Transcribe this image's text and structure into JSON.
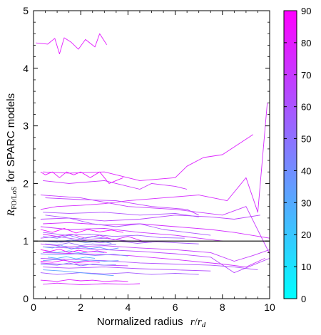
{
  "chart_data": {
    "type": "line",
    "xlabel": {
      "text": "Normalized radius",
      "math_var": "r",
      "math_slash": "/",
      "math_var2": "r",
      "math_sub": "d"
    },
    "ylabel": {
      "symbol": "R",
      "subscript": "FO/LoS",
      "suffix": "for SPARC models"
    },
    "xlim": [
      0,
      10
    ],
    "ylim": [
      0,
      5
    ],
    "x_ticks": [
      "0",
      "2",
      "4",
      "6",
      "8",
      "10"
    ],
    "y_ticks": [
      "0",
      "1",
      "2",
      "3",
      "4",
      "5"
    ],
    "reference_line": {
      "y": 1,
      "color": "#000000"
    },
    "colorbar": {
      "range": [
        0,
        90
      ],
      "ticks": [
        "0",
        "10",
        "20",
        "30",
        "40",
        "50",
        "60",
        "70",
        "80",
        "90"
      ],
      "colormap": [
        "#00ffff",
        "#ff00ff"
      ]
    },
    "series": [
      {
        "c": 80,
        "x": [
          0.1,
          0.6,
          0.9,
          1.1,
          1.3,
          1.6,
          1.9,
          2.2,
          2.6,
          2.8,
          3.1
        ],
        "y": [
          4.44,
          4.42,
          4.52,
          4.25,
          4.53,
          4.45,
          4.33,
          4.5,
          4.37,
          4.6,
          4.41
        ]
      },
      {
        "c": 75,
        "x": [
          0.3,
          1.0,
          2.0,
          3.0,
          4.0,
          5.5,
          7.0,
          8.2,
          9.0,
          9.5,
          9.9
        ],
        "y": [
          1.55,
          1.6,
          1.62,
          1.65,
          1.7,
          1.75,
          1.8,
          1.7,
          2.1,
          1.5,
          3.4
        ]
      },
      {
        "c": 78,
        "x": [
          0.4,
          1.5,
          3.0,
          4.5,
          6.0,
          6.5,
          7.2,
          8.0,
          9.3
        ],
        "y": [
          2.2,
          2.18,
          2.2,
          2.05,
          2.1,
          2.3,
          2.45,
          2.5,
          2.85
        ]
      },
      {
        "c": 82,
        "x": [
          0.3,
          0.5,
          0.8,
          1.1,
          1.4,
          1.7,
          2.0,
          2.4,
          2.8,
          3.2,
          3.8
        ],
        "y": [
          2.2,
          2.15,
          2.2,
          2.1,
          2.2,
          2.15,
          2.2,
          2.1,
          2.2,
          2.0,
          2.1
        ]
      },
      {
        "c": 72,
        "x": [
          0.4,
          1.5,
          3.0,
          4.5,
          5.0,
          6.0,
          6.5
        ],
        "y": [
          2.05,
          2.0,
          2.05,
          1.9,
          2.0,
          1.95,
          1.9
        ]
      },
      {
        "c": 70,
        "x": [
          0.3,
          2.0,
          4.0,
          6.0,
          8.0,
          9.0,
          10.0
        ],
        "y": [
          1.8,
          1.75,
          1.6,
          1.55,
          1.45,
          1.6,
          0.78
        ]
      },
      {
        "c": 68,
        "x": [
          0.5,
          2.0,
          3.5,
          5.0,
          6.5,
          7.0
        ],
        "y": [
          1.75,
          1.72,
          1.7,
          1.6,
          1.55,
          1.45
        ]
      },
      {
        "c": 66,
        "x": [
          0.3,
          1.5,
          3.0,
          4.5,
          6.0,
          7.5,
          8.5,
          9.6
        ],
        "y": [
          1.38,
          1.4,
          1.35,
          1.38,
          1.45,
          1.42,
          1.38,
          1.45
        ]
      },
      {
        "c": 74,
        "x": [
          0.4,
          1.5,
          3.0,
          4.5,
          6.0,
          7.5,
          8.5,
          10.0
        ],
        "y": [
          1.3,
          1.32,
          1.28,
          1.3,
          1.25,
          1.2,
          1.15,
          1.05
        ]
      },
      {
        "c": 71,
        "x": [
          0.3,
          1.5,
          3.0,
          4.5,
          6.0,
          7.0,
          8.0
        ],
        "y": [
          1.25,
          1.2,
          1.22,
          1.15,
          1.1,
          1.05,
          1.0
        ]
      },
      {
        "c": 60,
        "x": [
          0.5,
          1.5,
          2.5,
          3.5,
          4.5,
          5.5,
          6.5,
          7.5
        ],
        "y": [
          1.45,
          1.4,
          1.3,
          1.25,
          1.3,
          1.2,
          1.15,
          1.1
        ]
      },
      {
        "c": 77,
        "x": [
          0.4,
          1.0,
          1.6,
          2.2,
          2.8,
          3.4,
          4.0,
          4.6
        ],
        "y": [
          1.12,
          1.08,
          1.12,
          1.05,
          1.1,
          1.02,
          1.08,
          1.0
        ]
      },
      {
        "c": 64,
        "x": [
          0.3,
          1.0,
          2.0,
          3.0,
          4.0,
          5.0
        ],
        "y": [
          1.05,
          1.08,
          1.02,
          1.05,
          1.0,
          0.98
        ]
      },
      {
        "c": 58,
        "x": [
          0.4,
          1.2,
          2.0,
          2.8,
          3.6,
          4.4,
          5.2,
          6.0,
          7.0
        ],
        "y": [
          1.0,
          0.98,
          1.02,
          0.97,
          1.0,
          0.96,
          0.99,
          0.97,
          0.95
        ]
      },
      {
        "c": 69,
        "x": [
          0.3,
          1.5,
          3.0,
          4.5,
          6.0,
          7.5,
          8.5,
          9.3,
          10.0
        ],
        "y": [
          0.95,
          0.9,
          0.92,
          0.88,
          0.85,
          0.8,
          0.65,
          0.75,
          0.85
        ]
      },
      {
        "c": 65,
        "x": [
          0.4,
          1.5,
          3.0,
          4.5,
          6.0,
          7.5,
          8.5,
          10.0
        ],
        "y": [
          0.9,
          0.88,
          0.85,
          0.82,
          0.78,
          0.72,
          0.45,
          0.7
        ]
      },
      {
        "c": 73,
        "x": [
          0.4,
          2.0,
          4.0,
          6.0,
          8.0,
          9.0,
          9.8
        ],
        "y": [
          0.8,
          0.78,
          0.75,
          0.68,
          0.6,
          0.55,
          0.7
        ]
      },
      {
        "c": 62,
        "x": [
          0.3,
          1.5,
          3.0,
          4.5,
          6.0,
          7.5,
          8.5,
          9.5
        ],
        "y": [
          0.7,
          0.68,
          0.66,
          0.62,
          0.6,
          0.58,
          0.55,
          0.5
        ]
      },
      {
        "c": 67,
        "x": [
          0.3,
          1.0,
          2.0,
          3.0,
          4.0
        ],
        "y": [
          0.62,
          0.6,
          0.6,
          0.58,
          0.57
        ]
      },
      {
        "c": 63,
        "x": [
          0.4,
          1.5,
          3.0,
          4.5,
          6.0,
          7.5
        ],
        "y": [
          0.55,
          0.53,
          0.55,
          0.52,
          0.5,
          0.48
        ]
      },
      {
        "c": 58,
        "x": [
          0.3,
          1.0,
          2.0,
          3.0,
          4.0,
          5.0,
          6.0,
          7.0
        ],
        "y": [
          0.45,
          0.42,
          0.45,
          0.43,
          0.45,
          0.42,
          0.44,
          0.42
        ]
      },
      {
        "c": 79,
        "x": [
          0.3,
          1.0,
          1.5,
          2.0,
          2.5,
          3.0,
          3.5,
          4.0
        ],
        "y": [
          0.32,
          0.3,
          0.33,
          0.31,
          0.32,
          0.3,
          0.31,
          0.3
        ]
      },
      {
        "c": 76,
        "x": [
          0.4,
          1.0,
          2.0,
          3.0,
          4.0,
          4.5
        ],
        "y": [
          0.25,
          0.27,
          0.24,
          0.26,
          0.25,
          0.26
        ]
      },
      {
        "c": 40,
        "x": [
          0.4,
          1.0,
          1.6,
          2.2,
          2.8,
          3.3
        ],
        "y": [
          1.0,
          0.98,
          1.02,
          0.97,
          1.0,
          0.96
        ]
      },
      {
        "c": 35,
        "x": [
          0.4,
          0.8,
          1.2,
          1.6,
          2.0,
          2.4,
          2.8,
          3.2,
          3.6
        ],
        "y": [
          0.9,
          0.88,
          0.92,
          0.86,
          0.9,
          0.87,
          0.89,
          0.85,
          0.88
        ]
      },
      {
        "c": 30,
        "x": [
          0.5,
          1.0,
          1.5,
          2.0,
          2.5,
          3.0
        ],
        "y": [
          0.82,
          0.8,
          0.83,
          0.79,
          0.82,
          0.8
        ]
      },
      {
        "c": 42,
        "x": [
          0.3,
          1.0,
          1.8,
          2.6,
          3.4,
          4.0
        ],
        "y": [
          0.78,
          0.76,
          0.78,
          0.75,
          0.77,
          0.74
        ]
      },
      {
        "c": 28,
        "x": [
          0.6,
          1.0,
          1.4,
          1.8,
          2.2,
          2.6
        ],
        "y": [
          0.72,
          0.7,
          0.73,
          0.69,
          0.72,
          0.7
        ]
      },
      {
        "c": 38,
        "x": [
          0.4,
          1.0,
          1.7,
          2.4,
          3.0,
          3.6
        ],
        "y": [
          0.66,
          0.68,
          0.64,
          0.67,
          0.65,
          0.66
        ]
      },
      {
        "c": 45,
        "x": [
          0.3,
          1.0,
          1.5,
          2.0,
          2.5,
          3.0,
          3.5
        ],
        "y": [
          0.6,
          0.58,
          0.62,
          0.57,
          0.6,
          0.58,
          0.59
        ]
      },
      {
        "c": 33,
        "x": [
          0.4,
          1.2,
          2.0,
          2.8,
          3.4
        ],
        "y": [
          0.5,
          0.48,
          0.45,
          0.42,
          0.4
        ]
      },
      {
        "c": 48,
        "x": [
          0.4,
          1.0,
          1.5,
          2.0,
          2.5,
          3.0
        ],
        "y": [
          1.08,
          1.05,
          1.1,
          1.04,
          1.08,
          1.05
        ]
      },
      {
        "c": 52,
        "x": [
          0.5,
          1.0,
          1.5,
          2.0,
          2.5,
          3.0,
          3.5
        ],
        "y": [
          0.95,
          0.93,
          0.97,
          0.92,
          0.95,
          0.93,
          0.94
        ]
      },
      {
        "c": 85,
        "x": [
          0.3,
          0.8,
          1.3,
          1.8,
          2.3,
          2.8,
          3.3,
          3.8
        ],
        "y": [
          1.2,
          1.15,
          1.22,
          1.14,
          1.2,
          1.16,
          1.19,
          1.15
        ]
      },
      {
        "c": 88,
        "x": [
          0.3,
          0.7,
          1.1,
          1.5,
          1.9,
          2.3,
          2.7,
          3.1
        ],
        "y": [
          0.85,
          0.82,
          0.86,
          0.8,
          0.84,
          0.81,
          0.83,
          0.8
        ]
      },
      {
        "c": 84,
        "x": [
          0.3,
          0.8,
          1.3,
          1.8,
          2.3,
          2.8
        ],
        "y": [
          0.65,
          0.63,
          0.67,
          0.62,
          0.65,
          0.63
        ]
      },
      {
        "c": 61,
        "x": [
          0.4,
          1.5,
          3.0,
          4.5,
          6.0,
          7.0
        ],
        "y": [
          1.5,
          1.48,
          1.5,
          1.45,
          1.48,
          1.42
        ]
      },
      {
        "c": 57,
        "x": [
          0.4,
          1.4,
          2.4,
          3.4,
          4.4,
          5.4,
          6.4
        ],
        "y": [
          1.15,
          1.1,
          1.12,
          1.08,
          1.1,
          1.06,
          1.05
        ]
      }
    ]
  }
}
